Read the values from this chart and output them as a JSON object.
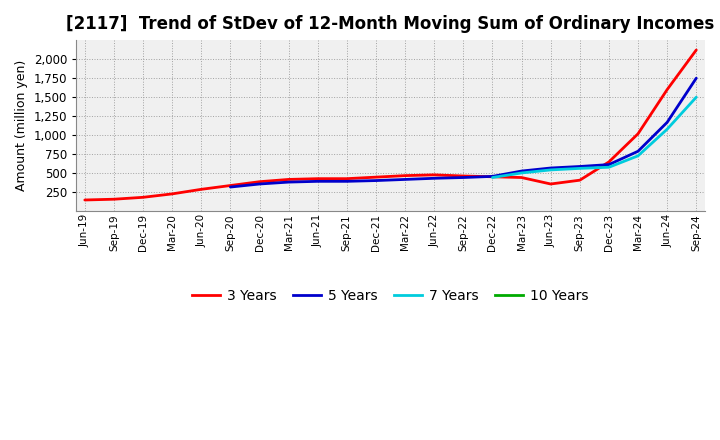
{
  "title": "[2117]  Trend of StDev of 12-Month Moving Sum of Ordinary Incomes",
  "ylabel": "Amount (million yen)",
  "background_color": "#ffffff",
  "plot_background_color": "#f0f0f0",
  "grid_color": "#999999",
  "title_fontsize": 12,
  "axis_fontsize": 9,
  "legend_fontsize": 10,
  "ylim": [
    0,
    2250
  ],
  "yticks": [
    250,
    500,
    750,
    1000,
    1250,
    1500,
    1750,
    2000
  ],
  "x_labels": [
    "Jun-19",
    "Sep-19",
    "Dec-19",
    "Mar-20",
    "Jun-20",
    "Sep-20",
    "Dec-20",
    "Mar-21",
    "Jun-21",
    "Sep-21",
    "Dec-21",
    "Mar-22",
    "Jun-22",
    "Sep-22",
    "Dec-22",
    "Mar-23",
    "Jun-23",
    "Sep-23",
    "Dec-23",
    "Mar-24",
    "Jun-24",
    "Sep-24"
  ],
  "series": [
    {
      "name": "3 Years",
      "color": "#ff0000",
      "linewidth": 2.0,
      "values": [
        150,
        160,
        185,
        230,
        290,
        340,
        390,
        420,
        430,
        430,
        450,
        470,
        480,
        465,
        455,
        445,
        360,
        410,
        650,
        1020,
        1600,
        2120
      ]
    },
    {
      "name": "5 Years",
      "color": "#0000cc",
      "linewidth": 2.0,
      "values": [
        null,
        null,
        null,
        null,
        null,
        320,
        360,
        385,
        395,
        395,
        405,
        420,
        435,
        445,
        460,
        530,
        570,
        590,
        615,
        790,
        1170,
        1750
      ]
    },
    {
      "name": "7 Years",
      "color": "#00ccdd",
      "linewidth": 2.0,
      "values": [
        null,
        null,
        null,
        null,
        null,
        null,
        null,
        null,
        null,
        null,
        null,
        null,
        null,
        null,
        445,
        505,
        545,
        565,
        580,
        730,
        1080,
        1500
      ]
    },
    {
      "name": "10 Years",
      "color": "#00aa00",
      "linewidth": 2.0,
      "values": [
        null,
        null,
        null,
        null,
        null,
        null,
        null,
        null,
        null,
        null,
        null,
        null,
        null,
        null,
        null,
        null,
        null,
        null,
        null,
        null,
        null,
        null
      ]
    }
  ]
}
